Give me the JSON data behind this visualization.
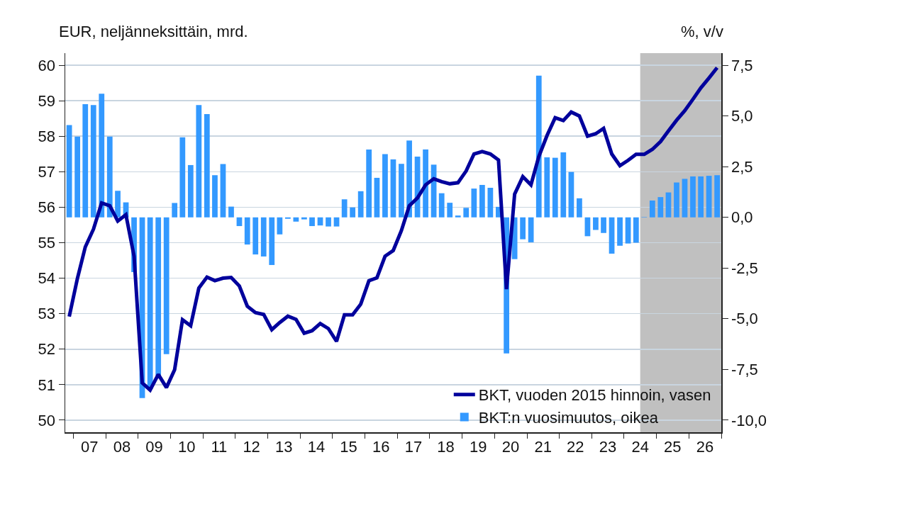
{
  "chart_data": {
    "type": "bar",
    "ylabel": "EUR, neljänneksittäin, mrd.",
    "y2label": "%, v/v",
    "x": [
      "2006-11-15",
      "2007-02-15",
      "2007-05-15",
      "2007-08-15",
      "2007-11-15",
      "2008-02-15",
      "2008-05-15",
      "2008-08-15",
      "2008-11-15",
      "2009-02-15",
      "2009-05-15",
      "2009-08-15",
      "2009-11-15",
      "2010-02-15",
      "2010-05-15",
      "2010-08-15",
      "2010-11-15",
      "2011-02-15",
      "2011-05-15",
      "2011-08-15",
      "2011-11-15",
      "2012-02-15",
      "2012-05-15",
      "2012-08-15",
      "2012-11-15",
      "2013-02-15",
      "2013-05-15",
      "2013-08-15",
      "2013-11-15",
      "2014-02-15",
      "2014-05-15",
      "2014-08-15",
      "2014-11-15",
      "2015-02-15",
      "2015-05-15",
      "2015-08-15",
      "2015-11-15",
      "2016-02-15",
      "2016-05-15",
      "2016-08-15",
      "2016-11-15",
      "2017-02-15",
      "2017-05-15",
      "2017-08-15",
      "2017-11-15",
      "2018-02-15",
      "2018-05-15",
      "2018-08-15",
      "2018-11-15",
      "2019-02-15",
      "2019-05-15",
      "2019-08-15",
      "2019-11-15",
      "2020-02-15",
      "2020-05-15",
      "2020-08-15",
      "2020-11-15",
      "2021-02-15",
      "2021-05-15",
      "2021-08-15",
      "2021-11-15",
      "2022-02-15",
      "2022-05-15",
      "2022-08-15",
      "2022-11-15",
      "2023-02-15",
      "2023-05-15",
      "2023-08-15",
      "2023-11-15",
      "2024-02-15",
      "2024-05-15",
      "2024-08-15",
      "2024-11-15",
      "2025-02-15",
      "2025-05-15",
      "2025-08-15",
      "2025-11-15",
      "2026-02-15",
      "2026-05-15",
      "2026-08-15",
      "2026-11-15"
    ],
    "series": [
      {
        "name": "BKT, vuoden 2015 hinnoin, vasen",
        "type": "line",
        "color": "#00009c",
        "values": [
          52.92,
          53.99,
          54.88,
          55.38,
          56.12,
          56.04,
          55.61,
          55.79,
          54.62,
          51.05,
          50.85,
          51.29,
          50.92,
          51.42,
          52.83,
          52.66,
          53.72,
          54.03,
          53.93,
          54.0,
          54.02,
          53.78,
          53.21,
          53.03,
          52.98,
          52.55,
          52.75,
          52.93,
          52.84,
          52.45,
          52.52,
          52.72,
          52.58,
          52.22,
          52.97,
          52.97,
          53.27,
          53.93,
          54.01,
          54.62,
          54.78,
          55.34,
          56.04,
          56.26,
          56.63,
          56.8,
          56.72,
          56.66,
          56.69,
          57.02,
          57.5,
          57.57,
          57.5,
          57.33,
          53.69,
          56.37,
          56.86,
          56.63,
          57.43,
          58.02,
          58.52,
          58.44,
          58.68,
          58.57,
          58.0,
          58.07,
          58.22,
          57.5,
          57.17,
          57.32,
          57.49,
          57.49,
          57.63,
          57.85,
          58.15,
          58.45,
          58.72,
          59.04,
          59.36,
          59.64,
          59.93
        ]
      },
      {
        "name": "BKT:n vuosimuutos, oikea",
        "axis": "y2",
        "color": "#3399ff",
        "values": [
          4.55,
          3.98,
          5.58,
          5.54,
          6.1,
          3.98,
          1.31,
          0.74,
          -2.7,
          -8.91,
          -8.46,
          -7.8,
          -6.75,
          0.71,
          3.95,
          2.58,
          5.54,
          5.09,
          2.08,
          2.63,
          0.53,
          -0.43,
          -1.34,
          -1.83,
          -1.93,
          -2.35,
          -0.84,
          -0.07,
          -0.21,
          -0.1,
          -0.43,
          -0.4,
          -0.45,
          -0.45,
          0.89,
          0.49,
          1.29,
          3.35,
          1.95,
          3.12,
          2.86,
          2.64,
          3.79,
          3.0,
          3.35,
          2.6,
          1.19,
          0.72,
          0.09,
          0.47,
          1.42,
          1.6,
          1.46,
          0.52,
          -6.71,
          -2.06,
          -1.08,
          -1.23,
          6.99,
          2.96,
          2.94,
          3.21,
          2.24,
          0.94,
          -0.93,
          -0.62,
          -0.77,
          -1.79,
          -1.4,
          -1.29,
          -1.25,
          0.02,
          0.83,
          1.0,
          1.23,
          1.72,
          1.9,
          2.02,
          2.02,
          2.05,
          2.08
        ]
      }
    ],
    "xlim": [
      "2006-10-01",
      "2027-01-01"
    ],
    "xticks": [
      {
        "value": "2007-01-01",
        "label": null
      },
      {
        "value": "2007-07-01",
        "label": "07"
      },
      {
        "value": "2008-01-01",
        "label": null
      },
      {
        "value": "2008-07-01",
        "label": "08"
      },
      {
        "value": "2009-01-01",
        "label": null
      },
      {
        "value": "2009-07-01",
        "label": "09"
      },
      {
        "value": "2010-01-01",
        "label": null
      },
      {
        "value": "2010-07-01",
        "label": "10"
      },
      {
        "value": "2011-01-01",
        "label": null
      },
      {
        "value": "2011-07-01",
        "label": "11"
      },
      {
        "value": "2012-01-01",
        "label": null
      },
      {
        "value": "2012-07-01",
        "label": "12"
      },
      {
        "value": "2013-01-01",
        "label": null
      },
      {
        "value": "2013-07-01",
        "label": "13"
      },
      {
        "value": "2014-01-01",
        "label": null
      },
      {
        "value": "2014-07-01",
        "label": "14"
      },
      {
        "value": "2015-01-01",
        "label": null
      },
      {
        "value": "2015-07-01",
        "label": "15"
      },
      {
        "value": "2016-01-01",
        "label": null
      },
      {
        "value": "2016-07-01",
        "label": "16"
      },
      {
        "value": "2017-01-01",
        "label": null
      },
      {
        "value": "2017-07-01",
        "label": "17"
      },
      {
        "value": "2018-01-01",
        "label": null
      },
      {
        "value": "2018-07-01",
        "label": "18"
      },
      {
        "value": "2019-01-01",
        "label": null
      },
      {
        "value": "2019-07-01",
        "label": "19"
      },
      {
        "value": "2020-01-01",
        "label": null
      },
      {
        "value": "2020-07-01",
        "label": "20"
      },
      {
        "value": "2021-01-01",
        "label": null
      },
      {
        "value": "2021-07-01",
        "label": "21"
      },
      {
        "value": "2022-01-01",
        "label": null
      },
      {
        "value": "2022-07-01",
        "label": "22"
      },
      {
        "value": "2023-01-01",
        "label": null
      },
      {
        "value": "2023-07-01",
        "label": "23"
      },
      {
        "value": "2024-01-01",
        "label": null
      },
      {
        "value": "2024-07-01",
        "label": "24"
      },
      {
        "value": "2025-01-01",
        "label": null
      },
      {
        "value": "2025-07-01",
        "label": "25"
      },
      {
        "value": "2026-01-01",
        "label": null
      },
      {
        "value": "2026-07-01",
        "label": "26"
      },
      {
        "value": "2027-01-01",
        "label": null
      }
    ],
    "ylim": [
      49.66,
      60.34
    ],
    "yticks": [
      50,
      51,
      52,
      53,
      54,
      55,
      56,
      57,
      58,
      59,
      60
    ],
    "y2lim": [
      -10.6,
      8.1
    ],
    "y2ticks": [
      {
        "value": -10,
        "label": "-10,0"
      },
      {
        "value": -7.5,
        "label": "-7,5"
      },
      {
        "value": -5,
        "label": "-5,0"
      },
      {
        "value": -2.5,
        "label": "-2,5"
      },
      {
        "value": 0,
        "label": "0,0"
      },
      {
        "value": 2.5,
        "label": "2,5"
      },
      {
        "value": 5,
        "label": "5,0"
      },
      {
        "value": 7.5,
        "label": "7,5"
      }
    ],
    "bands": [
      {
        "axis": "x",
        "from": "2024-07-01",
        "to": "2027-01-01",
        "color": "#c0c0c0"
      }
    ],
    "grid": "y",
    "legend": "bottom right"
  }
}
